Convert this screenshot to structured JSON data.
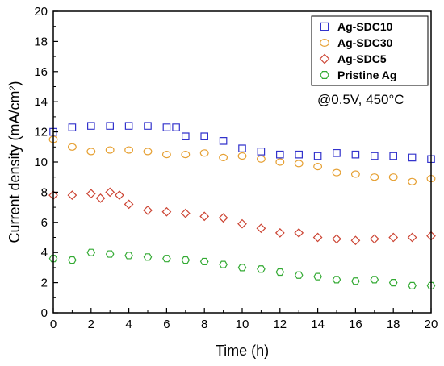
{
  "chart_data": {
    "type": "scatter",
    "xlabel": "Time (h)",
    "ylabel": "Current density (mA/cm²)",
    "xlim": [
      0,
      20
    ],
    "ylim": [
      0,
      20
    ],
    "x_ticks": [
      "0",
      "2",
      "4",
      "6",
      "8",
      "10",
      "12",
      "14",
      "16",
      "18",
      "20"
    ],
    "y_ticks": [
      "0",
      "2",
      "4",
      "6",
      "8",
      "10",
      "12",
      "14",
      "16",
      "18",
      "20"
    ],
    "grid": false,
    "legend_position": "top-right",
    "annotation": "@0.5V, 450°C",
    "series": [
      {
        "name": "Ag-SDC10",
        "marker": "square",
        "color": "#3333cc",
        "points": [
          [
            0,
            12.0
          ],
          [
            1,
            12.3
          ],
          [
            2,
            12.4
          ],
          [
            3,
            12.4
          ],
          [
            4,
            12.4
          ],
          [
            5,
            12.4
          ],
          [
            6,
            12.3
          ],
          [
            6.5,
            12.3
          ],
          [
            7,
            11.7
          ],
          [
            8,
            11.7
          ],
          [
            9,
            11.4
          ],
          [
            10,
            10.9
          ],
          [
            11,
            10.7
          ],
          [
            12,
            10.5
          ],
          [
            13,
            10.5
          ],
          [
            14,
            10.4
          ],
          [
            15,
            10.6
          ],
          [
            16,
            10.5
          ],
          [
            17,
            10.4
          ],
          [
            18,
            10.4
          ],
          [
            19,
            10.3
          ],
          [
            20,
            10.2
          ]
        ]
      },
      {
        "name": "Ag-SDC30",
        "marker": "circle",
        "color": "#e6a033",
        "points": [
          [
            0,
            11.5
          ],
          [
            1,
            11.0
          ],
          [
            2,
            10.7
          ],
          [
            3,
            10.8
          ],
          [
            4,
            10.8
          ],
          [
            5,
            10.7
          ],
          [
            6,
            10.5
          ],
          [
            7,
            10.5
          ],
          [
            8,
            10.6
          ],
          [
            9,
            10.3
          ],
          [
            10,
            10.4
          ],
          [
            11,
            10.2
          ],
          [
            12,
            10.0
          ],
          [
            13,
            9.9
          ],
          [
            14,
            9.7
          ],
          [
            15,
            9.3
          ],
          [
            16,
            9.2
          ],
          [
            17,
            9.0
          ],
          [
            18,
            9.0
          ],
          [
            19,
            8.7
          ],
          [
            20,
            8.9
          ]
        ]
      },
      {
        "name": "Ag-SDC5",
        "marker": "diamond",
        "color": "#cc4433",
        "points": [
          [
            0,
            7.8
          ],
          [
            1,
            7.8
          ],
          [
            2,
            7.9
          ],
          [
            2.5,
            7.6
          ],
          [
            3,
            8.0
          ],
          [
            3.5,
            7.8
          ],
          [
            4,
            7.2
          ],
          [
            5,
            6.8
          ],
          [
            6,
            6.7
          ],
          [
            7,
            6.6
          ],
          [
            8,
            6.4
          ],
          [
            9,
            6.3
          ],
          [
            10,
            5.9
          ],
          [
            11,
            5.6
          ],
          [
            12,
            5.3
          ],
          [
            13,
            5.3
          ],
          [
            14,
            5.0
          ],
          [
            15,
            4.9
          ],
          [
            16,
            4.8
          ],
          [
            17,
            4.9
          ],
          [
            18,
            5.0
          ],
          [
            19,
            5.0
          ],
          [
            20,
            5.1
          ]
        ]
      },
      {
        "name": "Pristine Ag",
        "marker": "hexagon",
        "color": "#33aa33",
        "points": [
          [
            0,
            3.6
          ],
          [
            1,
            3.5
          ],
          [
            2,
            4.0
          ],
          [
            3,
            3.9
          ],
          [
            4,
            3.8
          ],
          [
            5,
            3.7
          ],
          [
            6,
            3.6
          ],
          [
            7,
            3.5
          ],
          [
            8,
            3.4
          ],
          [
            9,
            3.2
          ],
          [
            10,
            3.0
          ],
          [
            11,
            2.9
          ],
          [
            12,
            2.7
          ],
          [
            13,
            2.5
          ],
          [
            14,
            2.4
          ],
          [
            15,
            2.2
          ],
          [
            16,
            2.1
          ],
          [
            17,
            2.2
          ],
          [
            18,
            2.0
          ],
          [
            19,
            1.8
          ],
          [
            20,
            1.8
          ]
        ]
      }
    ]
  }
}
